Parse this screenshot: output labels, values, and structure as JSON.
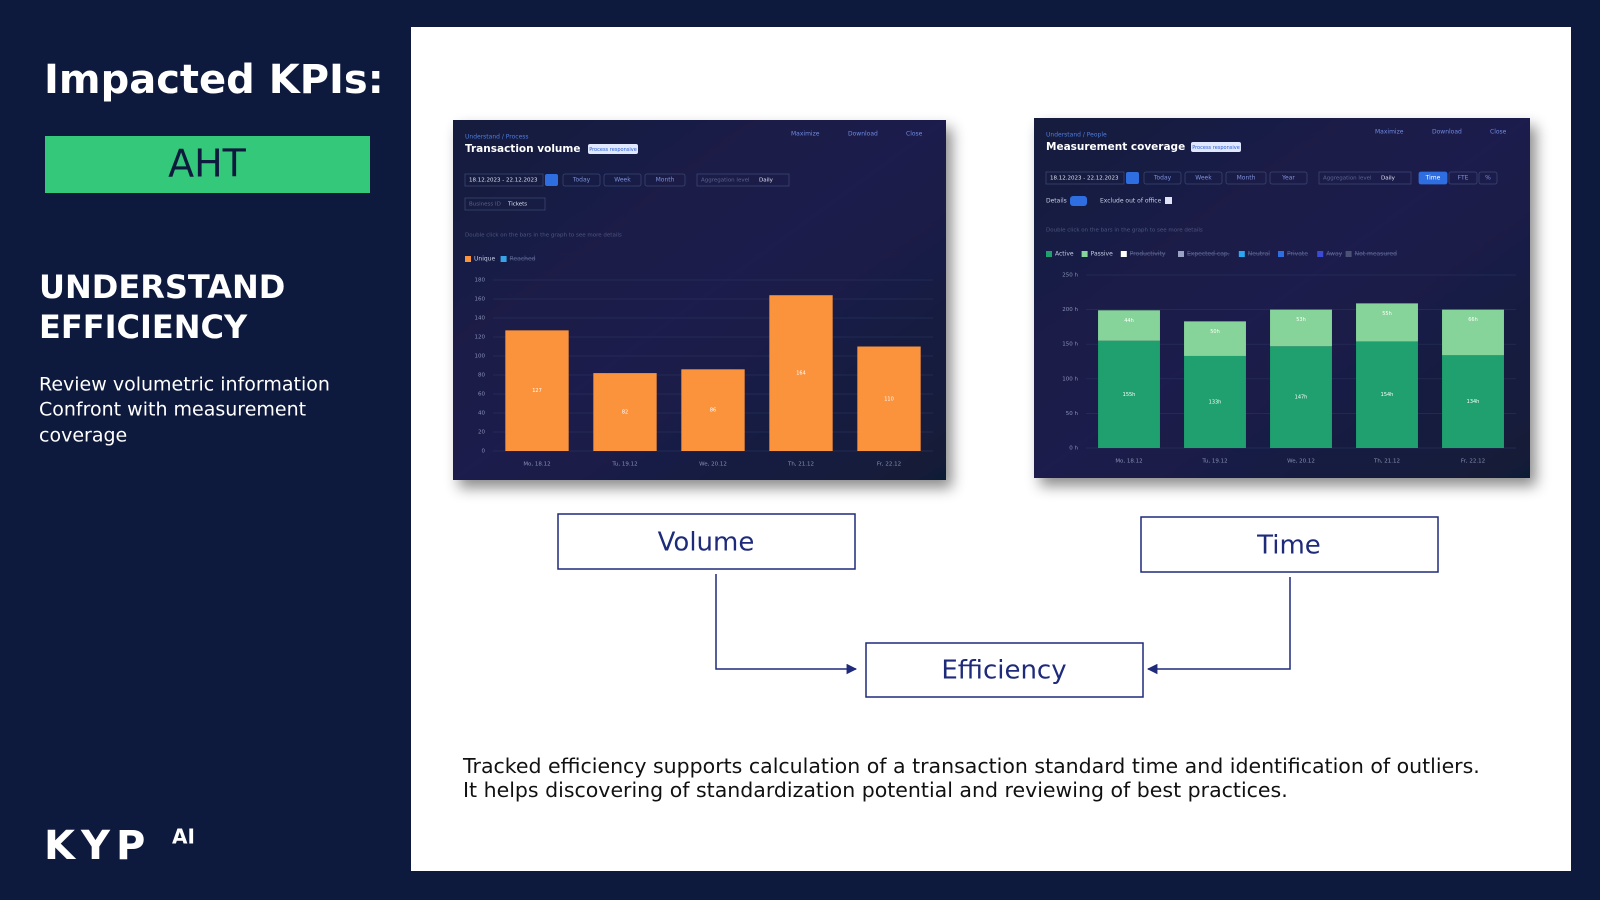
{
  "left": {
    "heading": "Impacted KPIs:",
    "kpi": "AHT",
    "section": [
      "UNDERSTAND",
      "EFFICIENCY"
    ],
    "body": [
      "Review volumetric information",
      "Confront with measurement",
      "coverage"
    ],
    "logo": "KYP",
    "logo_sup": "AI"
  },
  "widgets": [
    {
      "breadcrumb": "Understand / Process",
      "badge": "Process responsive",
      "actions": [
        "Maximize",
        "Download",
        "Close"
      ],
      "date": "18.12.2023 - 22.12.2023",
      "ranges": [
        "Today",
        "Week",
        "Month"
      ],
      "aggregation_label": "Aggregation level",
      "aggregation": "Daily",
      "filter_label": "Business ID",
      "filter": "Tickets",
      "hint": "Double click on the bars in the graph to see more details"
    },
    {
      "breadcrumb": "Understand / People",
      "badge": "Process responsive",
      "actions": [
        "Maximize",
        "Download",
        "Close"
      ],
      "date": "18.12.2023 - 22.12.2023",
      "ranges": [
        "Today",
        "Week",
        "Month",
        "Year"
      ],
      "aggregation_label": "Aggregation level",
      "aggregation": "Daily",
      "toggles": [
        "Time",
        "FTE",
        "%"
      ],
      "details": "Details",
      "exclude": "Exclude out of office",
      "hint": "Double click on the bars in the graph to see more details"
    }
  ],
  "chart_data": [
    {
      "type": "bar",
      "title": "Transaction volume",
      "categories": [
        "Mo, 18.12",
        "Tu, 19.12",
        "We, 20.12",
        "Th, 21.12",
        "Fr, 22.12"
      ],
      "series": [
        {
          "name": "Unique",
          "color": "#fb923c",
          "values": [
            127,
            82,
            86,
            164,
            110
          ]
        }
      ],
      "legend_extra": [
        {
          "name": "Reached",
          "color": "#38a3e8"
        }
      ],
      "ylim": [
        0,
        180
      ],
      "yticks": [
        0,
        20,
        40,
        60,
        80,
        100,
        120,
        140,
        160,
        180
      ],
      "grid": true
    },
    {
      "type": "stacked_bar",
      "title": "Measurement coverage",
      "categories": [
        "Mo, 18.12",
        "Tu, 19.12",
        "We, 20.12",
        "Th, 21.12",
        "Fr, 22.12"
      ],
      "series": [
        {
          "name": "Active",
          "color": "#1fa06e",
          "values": [
            155,
            133,
            147,
            154,
            134
          ],
          "value_labels": [
            "155h",
            "133h",
            "147h",
            "154h",
            "134h"
          ]
        },
        {
          "name": "Passive",
          "color": "#86d49a",
          "values": [
            44,
            50,
            53,
            55,
            66
          ],
          "value_labels": [
            "44h",
            "50h",
            "53h",
            "55h",
            "66h"
          ]
        }
      ],
      "legend_extra": [
        {
          "name": "Productivity",
          "color": "#ffffff"
        },
        {
          "name": "Expected cap.",
          "color": "#9aa3c4"
        },
        {
          "name": "Neutral",
          "color": "#2ba6f0"
        },
        {
          "name": "Private",
          "color": "#2f6ee0"
        },
        {
          "name": "Away",
          "color": "#3b4bd6"
        },
        {
          "name": "Not measured",
          "color": "#4a5373"
        }
      ],
      "ylim": [
        0,
        250
      ],
      "yticks": [
        {
          "value": 0,
          "label": "0 h"
        },
        {
          "value": 50,
          "label": "50 h"
        },
        {
          "value": 100,
          "label": "100 h"
        },
        {
          "value": 150,
          "label": "150 h"
        },
        {
          "value": 200,
          "label": "200 h"
        },
        {
          "value": 250,
          "label": "250 h"
        }
      ],
      "grid": true
    }
  ],
  "flow": {
    "nodes": [
      "Volume",
      "Time",
      "Efficiency"
    ]
  },
  "caption": [
    "Tracked efficiency supports calculation of a transaction standard time and identification of outliers.",
    "It helps discovering of standardization potential and reviewing of best practices."
  ]
}
